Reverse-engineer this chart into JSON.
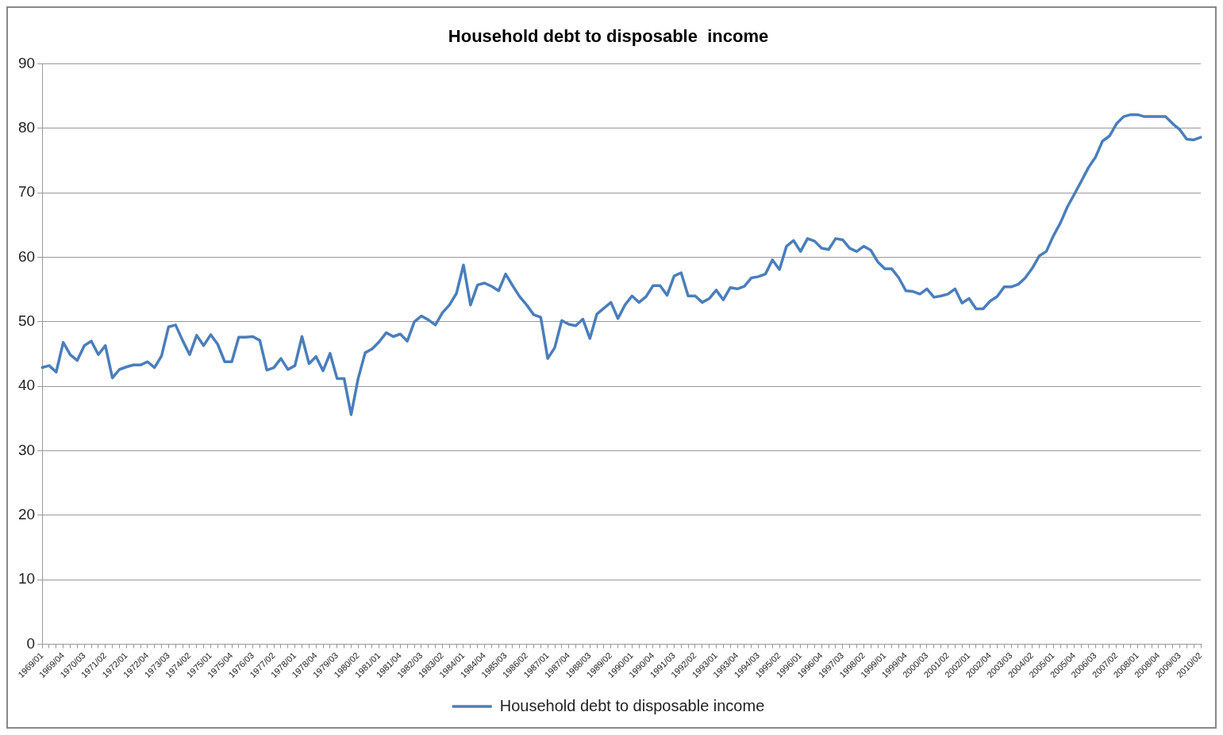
{
  "chart_data": {
    "type": "line",
    "title": "Household debt to disposable  income",
    "categories": [
      "1969/01",
      null,
      null,
      "1969/04",
      null,
      null,
      "1970/03",
      null,
      null,
      "1971/02",
      null,
      null,
      "1972/01",
      null,
      null,
      "1972/04",
      null,
      null,
      "1973/03",
      null,
      null,
      "1974/02",
      null,
      null,
      "1975/01",
      null,
      null,
      "1975/04",
      null,
      null,
      "1976/03",
      null,
      null,
      "1977/02",
      null,
      null,
      "1978/01",
      null,
      null,
      "1978/04",
      null,
      null,
      "1979/03",
      null,
      null,
      "1980/02",
      null,
      null,
      "1981/01",
      null,
      null,
      "1981/04",
      null,
      null,
      "1982/03",
      null,
      null,
      "1983/02",
      null,
      null,
      "1984/01",
      null,
      null,
      "1984/04",
      null,
      null,
      "1985/03",
      null,
      null,
      "1986/02",
      null,
      null,
      "1987/01",
      null,
      null,
      "1987/04",
      null,
      null,
      "1988/03",
      null,
      null,
      "1989/02",
      null,
      null,
      "1990/01",
      null,
      null,
      "1990/04",
      null,
      null,
      "1991/03",
      null,
      null,
      "1992/02",
      null,
      null,
      "1993/01",
      null,
      null,
      "1993/04",
      null,
      null,
      "1994/03",
      null,
      null,
      "1995/02",
      null,
      null,
      "1996/01",
      null,
      null,
      "1996/04",
      null,
      null,
      "1997/03",
      null,
      null,
      "1998/02",
      null,
      null,
      "1999/01",
      null,
      null,
      "1999/04",
      null,
      null,
      "2000/03",
      null,
      null,
      "2001/02",
      null,
      null,
      "2002/01",
      null,
      null,
      "2002/04",
      null,
      null,
      "2003/03",
      null,
      null,
      "2004/02",
      null,
      null,
      "2005/01",
      null,
      null,
      "2005/04",
      null,
      null,
      "2006/03",
      null,
      null,
      "2007/02",
      null,
      null,
      "2008/01",
      null,
      null,
      "2008/04",
      null,
      null,
      "2009/03",
      null,
      null,
      "2010/02"
    ],
    "series": [
      {
        "name": "Household debt to disposable income",
        "color": "#4a7ebb",
        "values": [
          42.9,
          43.2,
          42.2,
          46.8,
          44.9,
          44.0,
          46.3,
          47.0,
          44.9,
          46.3,
          41.3,
          42.6,
          43.0,
          43.3,
          43.3,
          43.8,
          42.9,
          44.7,
          49.2,
          49.5,
          47.1,
          44.9,
          47.9,
          46.3,
          48.0,
          46.5,
          43.8,
          43.8,
          47.6,
          47.6,
          47.7,
          47.1,
          42.5,
          42.9,
          44.3,
          42.6,
          43.2,
          47.7,
          43.5,
          44.6,
          42.4,
          45.1,
          41.2,
          41.2,
          35.6,
          41.2,
          45.2,
          45.8,
          46.9,
          48.3,
          47.7,
          48.1,
          47.0,
          50.0,
          50.9,
          50.3,
          49.5,
          51.4,
          52.6,
          54.4,
          58.8,
          52.6,
          55.7,
          56.0,
          55.5,
          54.8,
          57.4,
          55.6,
          53.9,
          52.6,
          51.1,
          50.7,
          44.3,
          46.0,
          50.2,
          49.6,
          49.4,
          50.4,
          47.4,
          51.2,
          52.1,
          53.0,
          50.5,
          52.6,
          54.0,
          53.0,
          53.9,
          55.6,
          55.6,
          54.1,
          57.1,
          57.6,
          54.0,
          54.0,
          53.0,
          53.6,
          54.9,
          53.4,
          55.3,
          55.1,
          55.5,
          56.8,
          57.0,
          57.4,
          59.6,
          58.1,
          61.7,
          62.6,
          60.9,
          62.9,
          62.5,
          61.4,
          61.2,
          62.9,
          62.7,
          61.4,
          60.9,
          61.7,
          61.1,
          59.3,
          58.2,
          58.2,
          56.8,
          54.8,
          54.7,
          54.3,
          55.1,
          53.8,
          54.0,
          54.3,
          55.1,
          52.9,
          53.6,
          52.0,
          52.0,
          53.2,
          53.9,
          55.4,
          55.4,
          55.8,
          56.8,
          58.3,
          60.2,
          60.9,
          63.3,
          65.3,
          67.8,
          69.8,
          71.8,
          73.9,
          75.5,
          78.0,
          78.8,
          80.7,
          81.8,
          82.1,
          82.1,
          81.8,
          81.8,
          81.8,
          81.8,
          80.7,
          79.8,
          78.3,
          78.2,
          78.6
        ]
      }
    ],
    "ylim": [
      0,
      90
    ],
    "yticks": [
      0,
      10,
      20,
      30,
      40,
      50,
      60,
      70,
      80,
      90
    ],
    "grid": "y",
    "legend": "bottom",
    "marker": "none",
    "line_style": "solid"
  }
}
